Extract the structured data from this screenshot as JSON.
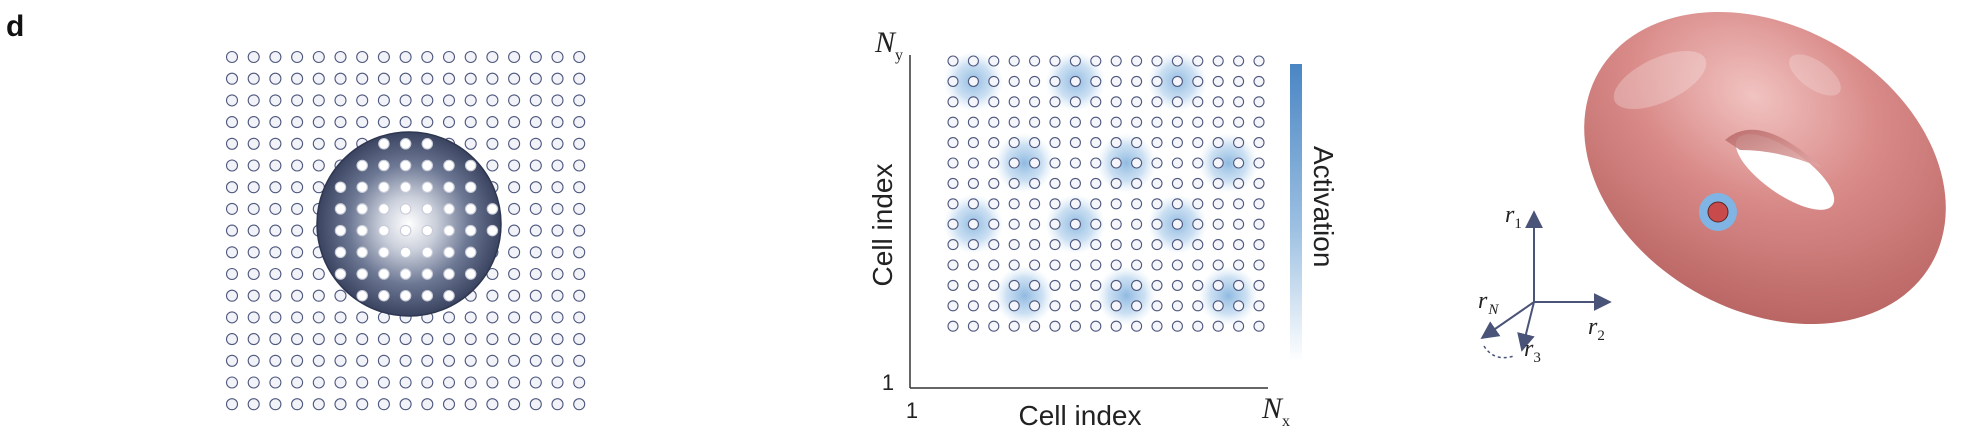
{
  "panel": {
    "letter": "d"
  },
  "grid_panel": {
    "rows": 17,
    "cols": 17
  },
  "activity_map": {
    "rows": 14,
    "cols": 16,
    "x_axis": {
      "label": "Cell index",
      "min_label": "1",
      "max_label_main": "N",
      "max_label_sub": "x"
    },
    "y_axis": {
      "label": "Cell index",
      "min_label": "1",
      "max_label_main": "N",
      "max_label_sub": "y"
    },
    "colorbar": {
      "label": "Activation",
      "color": "#4a86c4"
    },
    "bump_color": "#8ab6df"
  },
  "axes3d": {
    "r1": {
      "main": "r",
      "sub": "1"
    },
    "r2": {
      "main": "r",
      "sub": "2"
    },
    "r3": {
      "main": "r",
      "sub": "3"
    },
    "rN": {
      "main": "r",
      "sub": "N"
    }
  },
  "torus": {
    "color": "#d98b89",
    "marker_color": "#c84a4a",
    "marker_ring_color": "#7fb4e4"
  },
  "colors": {
    "dot_fill": "#f1f3f8",
    "dot_stroke": "#4f587e",
    "bump_dark": "#3f4a66"
  }
}
